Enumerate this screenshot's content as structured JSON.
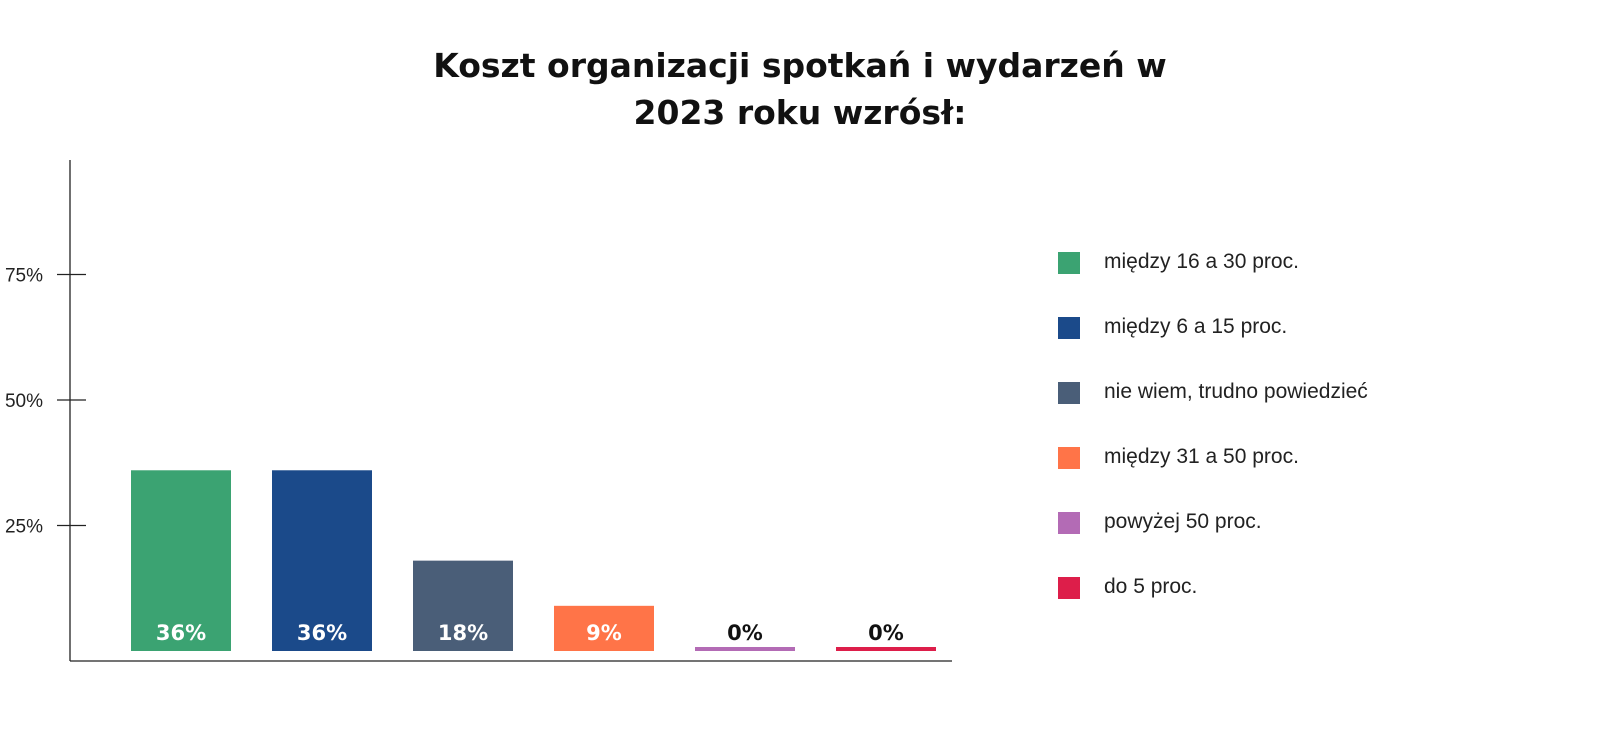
{
  "chart_data": {
    "type": "bar",
    "title_lines": [
      "Koszt organizacji spotkań i wydarzeń w",
      "2023 roku wzrósł:"
    ],
    "categories": [
      "między 16 a 30 proc.",
      "między 6 a 15 proc.",
      "nie wiem, trudno powiedzieć",
      "między 31 a 50 proc.",
      "powyżej 50 proc.",
      "do 5 proc."
    ],
    "values": [
      36,
      36,
      18,
      9,
      0,
      0
    ],
    "value_labels": [
      "36%",
      "36%",
      "18%",
      "9%",
      "0%",
      "0%"
    ],
    "colors": [
      "#3BA372",
      "#1B4A8A",
      "#4A5E78",
      "#FF7448",
      "#B36BB5",
      "#DD1E4A"
    ],
    "y_ticks": [
      {
        "value": 25,
        "label": "25%"
      },
      {
        "value": 50,
        "label": "50%"
      },
      {
        "value": 75,
        "label": "75%"
      }
    ],
    "ylim": [
      0,
      100
    ],
    "xlabel": "",
    "ylabel": "",
    "grid": false,
    "legend_position": "right"
  }
}
